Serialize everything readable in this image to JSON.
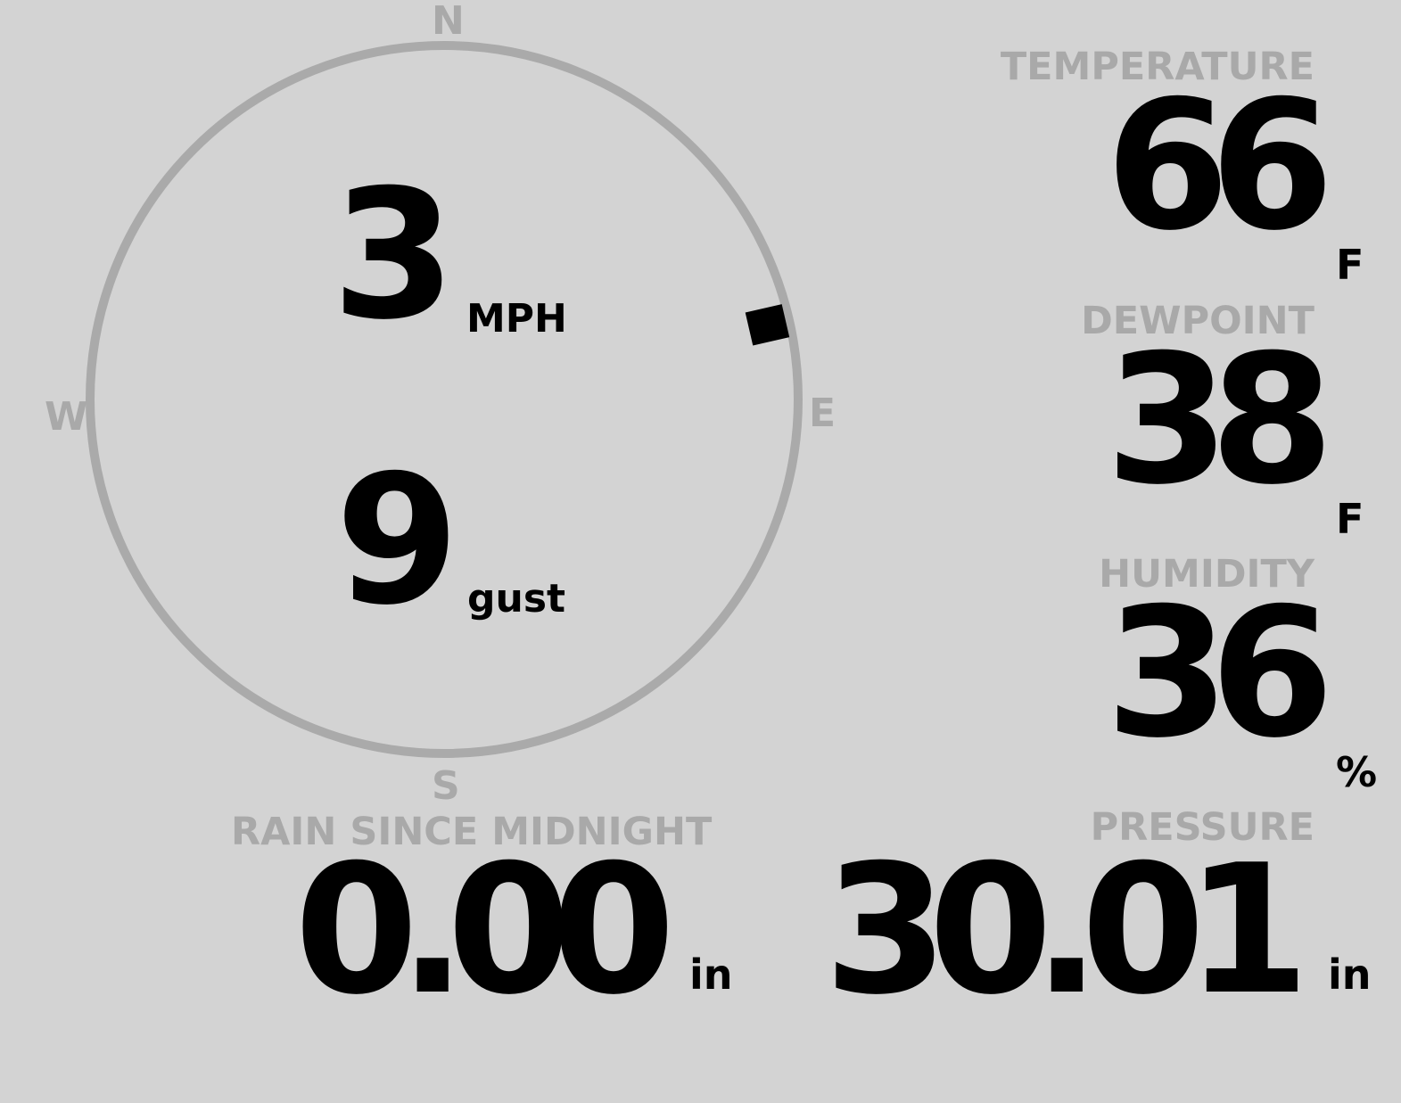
{
  "wind": {
    "speed": "3",
    "speed_unit": "MPH",
    "gust": "9",
    "gust_unit": "gust",
    "direction_degrees": 77,
    "compass": {
      "n": "N",
      "e": "E",
      "s": "S",
      "w": "W"
    },
    "ring_color": "#aaaaaa",
    "marker_color": "#000000"
  },
  "temperature": {
    "label": "TEMPERATURE",
    "value": "66",
    "unit": "F"
  },
  "dewpoint": {
    "label": "DEWPOINT",
    "value": "38",
    "unit": "F"
  },
  "humidity": {
    "label": "HUMIDITY",
    "value": "36",
    "unit": "%"
  },
  "rain": {
    "label": "RAIN SINCE MIDNIGHT",
    "value": "0.00",
    "unit": "in"
  },
  "pressure": {
    "label": "PRESSURE",
    "value": "30.01",
    "unit": "in"
  }
}
